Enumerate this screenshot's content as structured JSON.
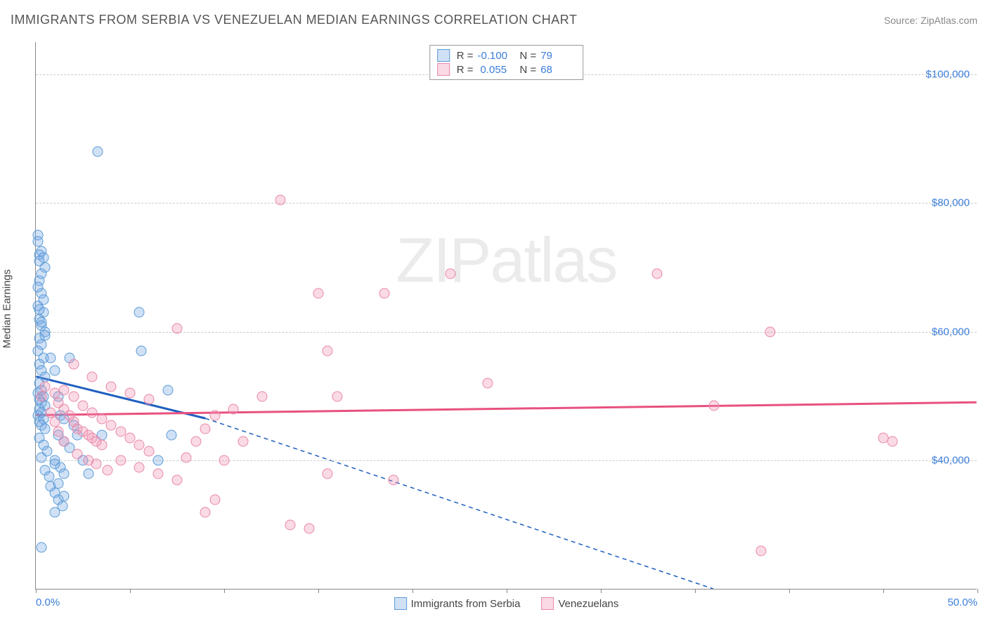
{
  "title": "IMMIGRANTS FROM SERBIA VS VENEZUELAN MEDIAN EARNINGS CORRELATION CHART",
  "source": "Source: ZipAtlas.com",
  "watermark": "ZIPatlas",
  "y_axis_label": "Median Earnings",
  "chart": {
    "type": "scatter",
    "xlim": [
      0,
      50
    ],
    "ylim": [
      20000,
      105000
    ],
    "x_tick_positions": [
      0,
      5,
      10,
      15,
      20,
      25,
      30,
      35,
      40,
      45,
      50
    ],
    "x_tick_labels_shown": {
      "0": "0.0%",
      "50": "50.0%"
    },
    "y_ticks": [
      40000,
      60000,
      80000,
      100000
    ],
    "y_tick_labels": [
      "$40,000",
      "$60,000",
      "$80,000",
      "$100,000"
    ],
    "grid_color": "#cccccc",
    "background_color": "#ffffff",
    "axis_color": "#888888",
    "label_color": "#3b7dd8",
    "point_radius": 7.5,
    "series": [
      {
        "name": "Immigrants from Serbia",
        "color_fill": "rgba(120,170,230,0.35)",
        "color_stroke": "#5a9bd5",
        "trend_color": "#1f5fbf",
        "R": "-0.100",
        "N": "79",
        "trend": {
          "x1": 0,
          "y1": 53000,
          "x2": 9,
          "y2": 46500,
          "dash_x2": 36,
          "dash_y2": 20000
        },
        "points": [
          [
            0.1,
            75000
          ],
          [
            0.1,
            74000
          ],
          [
            0.3,
            72500
          ],
          [
            0.2,
            72000
          ],
          [
            0.4,
            71500
          ],
          [
            0.5,
            70000
          ],
          [
            0.2,
            68000
          ],
          [
            0.3,
            66000
          ],
          [
            0.1,
            64000
          ],
          [
            0.4,
            63000
          ],
          [
            0.2,
            62000
          ],
          [
            0.3,
            61000
          ],
          [
            0.5,
            60000
          ],
          [
            0.2,
            59000
          ],
          [
            0.3,
            58000
          ],
          [
            0.1,
            57000
          ],
          [
            0.4,
            56000
          ],
          [
            0.2,
            55000
          ],
          [
            0.3,
            54000
          ],
          [
            0.5,
            53000
          ],
          [
            0.2,
            52000
          ],
          [
            0.3,
            51000
          ],
          [
            0.1,
            50500
          ],
          [
            0.4,
            50000
          ],
          [
            0.2,
            49500
          ],
          [
            0.3,
            49000
          ],
          [
            0.5,
            48500
          ],
          [
            0.2,
            48000
          ],
          [
            0.3,
            47500
          ],
          [
            0.1,
            47000
          ],
          [
            0.4,
            46500
          ],
          [
            0.2,
            46000
          ],
          [
            0.3,
            45500
          ],
          [
            0.5,
            45000
          ],
          [
            0.8,
            56000
          ],
          [
            1.0,
            54000
          ],
          [
            1.2,
            50000
          ],
          [
            1.3,
            47000
          ],
          [
            1.2,
            44000
          ],
          [
            1.5,
            43000
          ],
          [
            1.8,
            42000
          ],
          [
            1.0,
            40000
          ],
          [
            1.3,
            39000
          ],
          [
            1.5,
            38000
          ],
          [
            0.8,
            36000
          ],
          [
            1.0,
            35000
          ],
          [
            1.2,
            34000
          ],
          [
            1.4,
            33000
          ],
          [
            1.0,
            32000
          ],
          [
            2.2,
            44000
          ],
          [
            2.5,
            40000
          ],
          [
            2.8,
            38000
          ],
          [
            0.3,
            26500
          ],
          [
            1.0,
            39500
          ],
          [
            1.2,
            36500
          ],
          [
            1.5,
            34500
          ],
          [
            0.2,
            43500
          ],
          [
            0.4,
            42500
          ],
          [
            0.6,
            41500
          ],
          [
            3.5,
            44000
          ],
          [
            0.3,
            40500
          ],
          [
            0.5,
            38500
          ],
          [
            0.7,
            37500
          ],
          [
            0.2,
            71000
          ],
          [
            0.3,
            69000
          ],
          [
            0.1,
            67000
          ],
          [
            0.4,
            65000
          ],
          [
            0.2,
            63500
          ],
          [
            0.3,
            61500
          ],
          [
            0.5,
            59500
          ],
          [
            1.8,
            56000
          ],
          [
            5.5,
            63000
          ],
          [
            5.6,
            57000
          ],
          [
            3.3,
            88000
          ],
          [
            7.0,
            51000
          ],
          [
            7.2,
            44000
          ],
          [
            6.5,
            40000
          ],
          [
            1.5,
            46500
          ],
          [
            2.0,
            45500
          ]
        ]
      },
      {
        "name": "Venezuelans",
        "color_fill": "rgba(240,150,180,0.35)",
        "color_stroke": "#e887a8",
        "trend_color": "#e8517f",
        "R": "0.055",
        "N": "68",
        "trend": {
          "x1": 0,
          "y1": 47000,
          "x2": 50,
          "y2": 49000
        },
        "points": [
          [
            1.2,
            49000
          ],
          [
            1.5,
            48000
          ],
          [
            1.8,
            47000
          ],
          [
            2.0,
            46000
          ],
          [
            2.2,
            45000
          ],
          [
            2.5,
            44500
          ],
          [
            2.8,
            44000
          ],
          [
            3.0,
            43500
          ],
          [
            3.2,
            43000
          ],
          [
            3.5,
            42500
          ],
          [
            1.5,
            51000
          ],
          [
            2.0,
            50000
          ],
          [
            2.5,
            48500
          ],
          [
            3.0,
            47500
          ],
          [
            3.5,
            46500
          ],
          [
            4.0,
            45500
          ],
          [
            4.5,
            44500
          ],
          [
            5.0,
            43500
          ],
          [
            5.5,
            42500
          ],
          [
            6.0,
            41500
          ],
          [
            2.0,
            55000
          ],
          [
            3.0,
            53000
          ],
          [
            4.0,
            51500
          ],
          [
            5.0,
            50500
          ],
          [
            6.0,
            49500
          ],
          [
            4.5,
            40000
          ],
          [
            5.5,
            39000
          ],
          [
            6.5,
            38000
          ],
          [
            7.5,
            37000
          ],
          [
            8.0,
            40500
          ],
          [
            8.5,
            43000
          ],
          [
            9.0,
            45000
          ],
          [
            9.5,
            47000
          ],
          [
            10.0,
            40000
          ],
          [
            10.5,
            48000
          ],
          [
            11.0,
            43000
          ],
          [
            12.0,
            50000
          ],
          [
            0.8,
            47500
          ],
          [
            1.0,
            46000
          ],
          [
            1.2,
            44500
          ],
          [
            7.5,
            60500
          ],
          [
            13.0,
            80500
          ],
          [
            15.0,
            66000
          ],
          [
            15.5,
            57000
          ],
          [
            15.5,
            38000
          ],
          [
            16.0,
            50000
          ],
          [
            18.5,
            66000
          ],
          [
            19.0,
            37000
          ],
          [
            22.0,
            69000
          ],
          [
            24.0,
            52000
          ],
          [
            13.5,
            30000
          ],
          [
            14.5,
            29500
          ],
          [
            9.5,
            34000
          ],
          [
            9.0,
            32000
          ],
          [
            45.0,
            43500
          ],
          [
            45.5,
            43000
          ],
          [
            39.0,
            60000
          ],
          [
            36.0,
            48500
          ],
          [
            33.0,
            69000
          ],
          [
            38.5,
            26000
          ],
          [
            2.2,
            41000
          ],
          [
            2.8,
            40000
          ],
          [
            3.2,
            39500
          ],
          [
            3.8,
            38500
          ],
          [
            1.0,
            50500
          ],
          [
            1.5,
            43000
          ],
          [
            0.5,
            51500
          ],
          [
            0.3,
            50000
          ]
        ]
      }
    ]
  }
}
